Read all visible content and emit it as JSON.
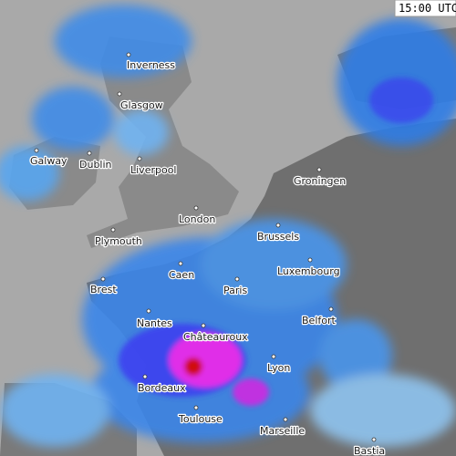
{
  "timestamp": "15:00 UTC",
  "cities": [
    {
      "name": "Inverness"
    },
    {
      "name": "Glasgow"
    },
    {
      "name": "Galway"
    },
    {
      "name": "Dublin"
    },
    {
      "name": "Liverpool"
    },
    {
      "name": "London"
    },
    {
      "name": "Groningen"
    },
    {
      "name": "Plymouth"
    },
    {
      "name": "Brussels"
    },
    {
      "name": "Caen"
    },
    {
      "name": "Luxembourg"
    },
    {
      "name": "Brest"
    },
    {
      "name": "Paris"
    },
    {
      "name": "Nantes"
    },
    {
      "name": "Belfort"
    },
    {
      "name": "Châteauroux"
    },
    {
      "name": "Lyon"
    },
    {
      "name": "Bordeaux"
    },
    {
      "name": "Toulouse"
    },
    {
      "name": "Marseille"
    },
    {
      "name": "Bastia"
    }
  ]
}
